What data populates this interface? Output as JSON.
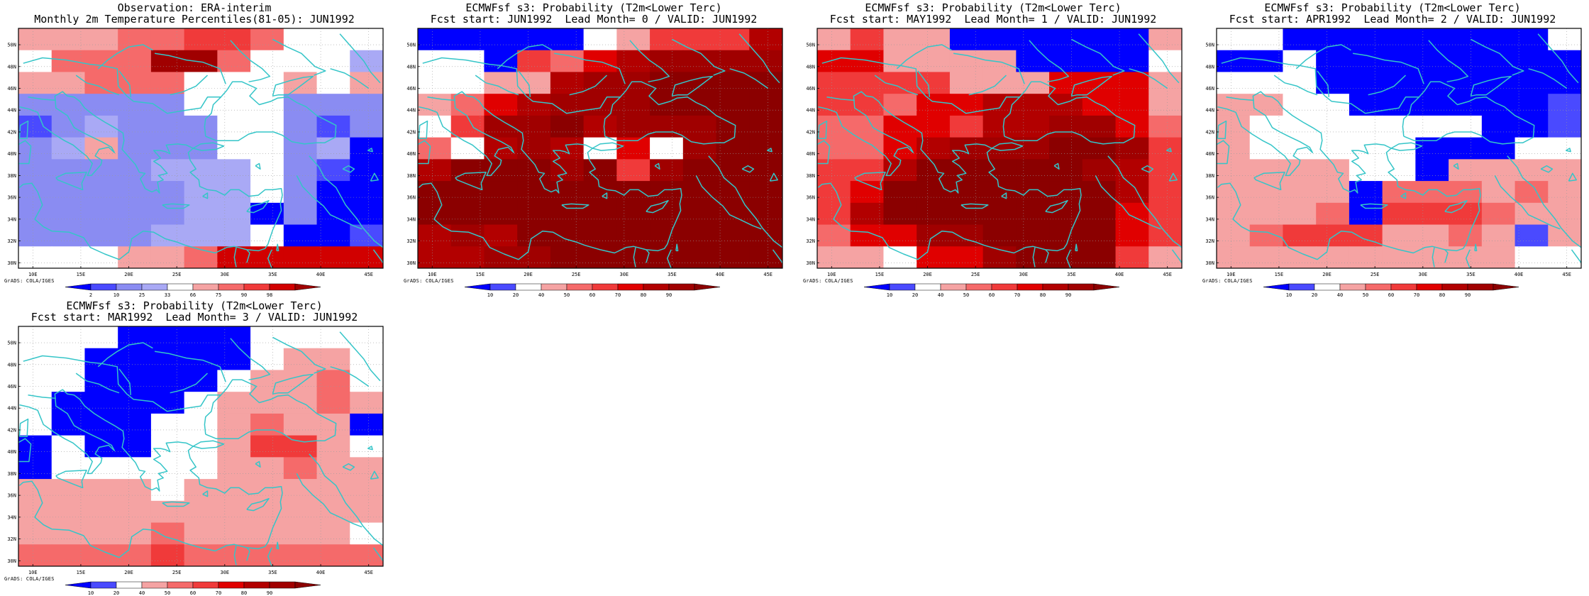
{
  "colors": {
    "coast": "#35c5c8",
    "levels_obs": [
      "#0000ff",
      "#4a4aff",
      "#8a8cf2",
      "#a9a9f5",
      "#ffffff",
      "#f5a3a3",
      "#f56a6a",
      "#f03a3a",
      "#d10000",
      "#a00000"
    ],
    "levels_prob": [
      "#0000ff",
      "#4a4aff",
      "#ffffff",
      "#f5a3a3",
      "#f56a6a",
      "#f03a3a",
      "#e00000",
      "#b20000",
      "#a00000",
      "#8b0000"
    ]
  },
  "axes": {
    "lat_labels": [
      "50N",
      "48N",
      "46N",
      "44N",
      "42N",
      "40N",
      "38N",
      "36N",
      "34N",
      "32N",
      "30N"
    ],
    "lon_labels": [
      "10E",
      "15E",
      "20E",
      "25E",
      "30E",
      "35E",
      "40E",
      "45E"
    ]
  },
  "grads_label": "GrADS: COLA/IGES",
  "panels": [
    {
      "title1": "Observation: ERA-interim",
      "title2": "Monthly 2m Temperature Percentiles(81-05): JUN1992",
      "colorbar_labels": [
        "2",
        "10",
        "25",
        "33",
        "66",
        "75",
        "90",
        "98"
      ],
      "palette": "levels_obs",
      "grid": [
        "55566776444",
        "46669964443",
        "55666444545",
        "22222444222",
        "12322244212",
        "23522244230",
        "22223334210",
        "22222334200",
        "22222330200",
        "22223334001",
        "44455688888"
      ]
    },
    {
      "title1": "ECMWFsf s3: Probability (T2m<Lower Terc)",
      "title2": "Fcst start: JUN1992  Lead Month= 0 / VALID: JUN1992",
      "colorbar_labels": [
        "10",
        "20",
        "40",
        "50",
        "60",
        "70",
        "80",
        "90"
      ],
      "palette": "levels_prob",
      "grid": [
        "00000235557",
        "22054678888",
        "22337889999",
        "34678889999",
        "25889788899",
        "42787262899",
        "79998958999",
        "99999999999",
        "99999999999",
        "78799999999",
        "77889999999"
      ]
    },
    {
      "title1": "ECMWFsf s3: Probability (T2m<Lower Terc)",
      "title2": "Fcst start: MAY1992  Lead Month= 1 / VALID: JUN1992",
      "colorbar_labels": [
        "10",
        "20",
        "40",
        "50",
        "60",
        "70",
        "80",
        "90"
      ],
      "palette": "levels_prob",
      "grid": [
        "35330000003",
        "66333300002",
        "55553336663",
        "55466777663",
        "44665778864",
        "44678889985",
        "55799999875",
        "56999999975",
        "57999999965",
        "46688999965",
        "33266899953"
      ]
    },
    {
      "title1": "ECMWFsf s3: Probability (T2m<Lower Terc)",
      "title2": "Fcst start: APR1992  Lead Month= 2 / VALID: JUN1992",
      "colorbar_labels": [
        "10",
        "20",
        "40",
        "50",
        "60",
        "70",
        "80",
        "90"
      ],
      "palette": "levels_prob",
      "grid": [
        "22000000002",
        "00200000000",
        "22200000000",
        "33220000001",
        "32222222001",
        "32222200022",
        "33332203333",
        "33330444343",
        "33340555433",
        "34555334313",
        "33333333322"
      ]
    },
    {
      "title1": "ECMWFsf s3: Probability (T2m<Lower Terc)",
      "title2": "Fcst start: MAR1992  Lead Month= 3 / VALID: JUN1992",
      "colorbar_labels": [
        "10",
        "20",
        "40",
        "50",
        "60",
        "70",
        "80",
        "90"
      ],
      "palette": "levels_prob",
      "grid": [
        "22200002222",
        "22000002332",
        "22000023342",
        "20000233343",
        "20002234330",
        "02002235532",
        "02222233433",
        "33332333333",
        "33333333333",
        "33334333332",
        "44445444444"
      ]
    }
  ]
}
